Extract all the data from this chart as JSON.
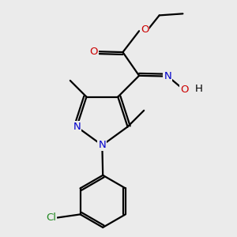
{
  "background_color": "#ebebeb",
  "atom_colors": {
    "C": "#000000",
    "N": "#0000cc",
    "O": "#cc0000",
    "Cl": "#228822",
    "H": "#000000"
  },
  "bond_color": "#000000",
  "bond_width": 1.6,
  "font_size_atom": 9.5
}
